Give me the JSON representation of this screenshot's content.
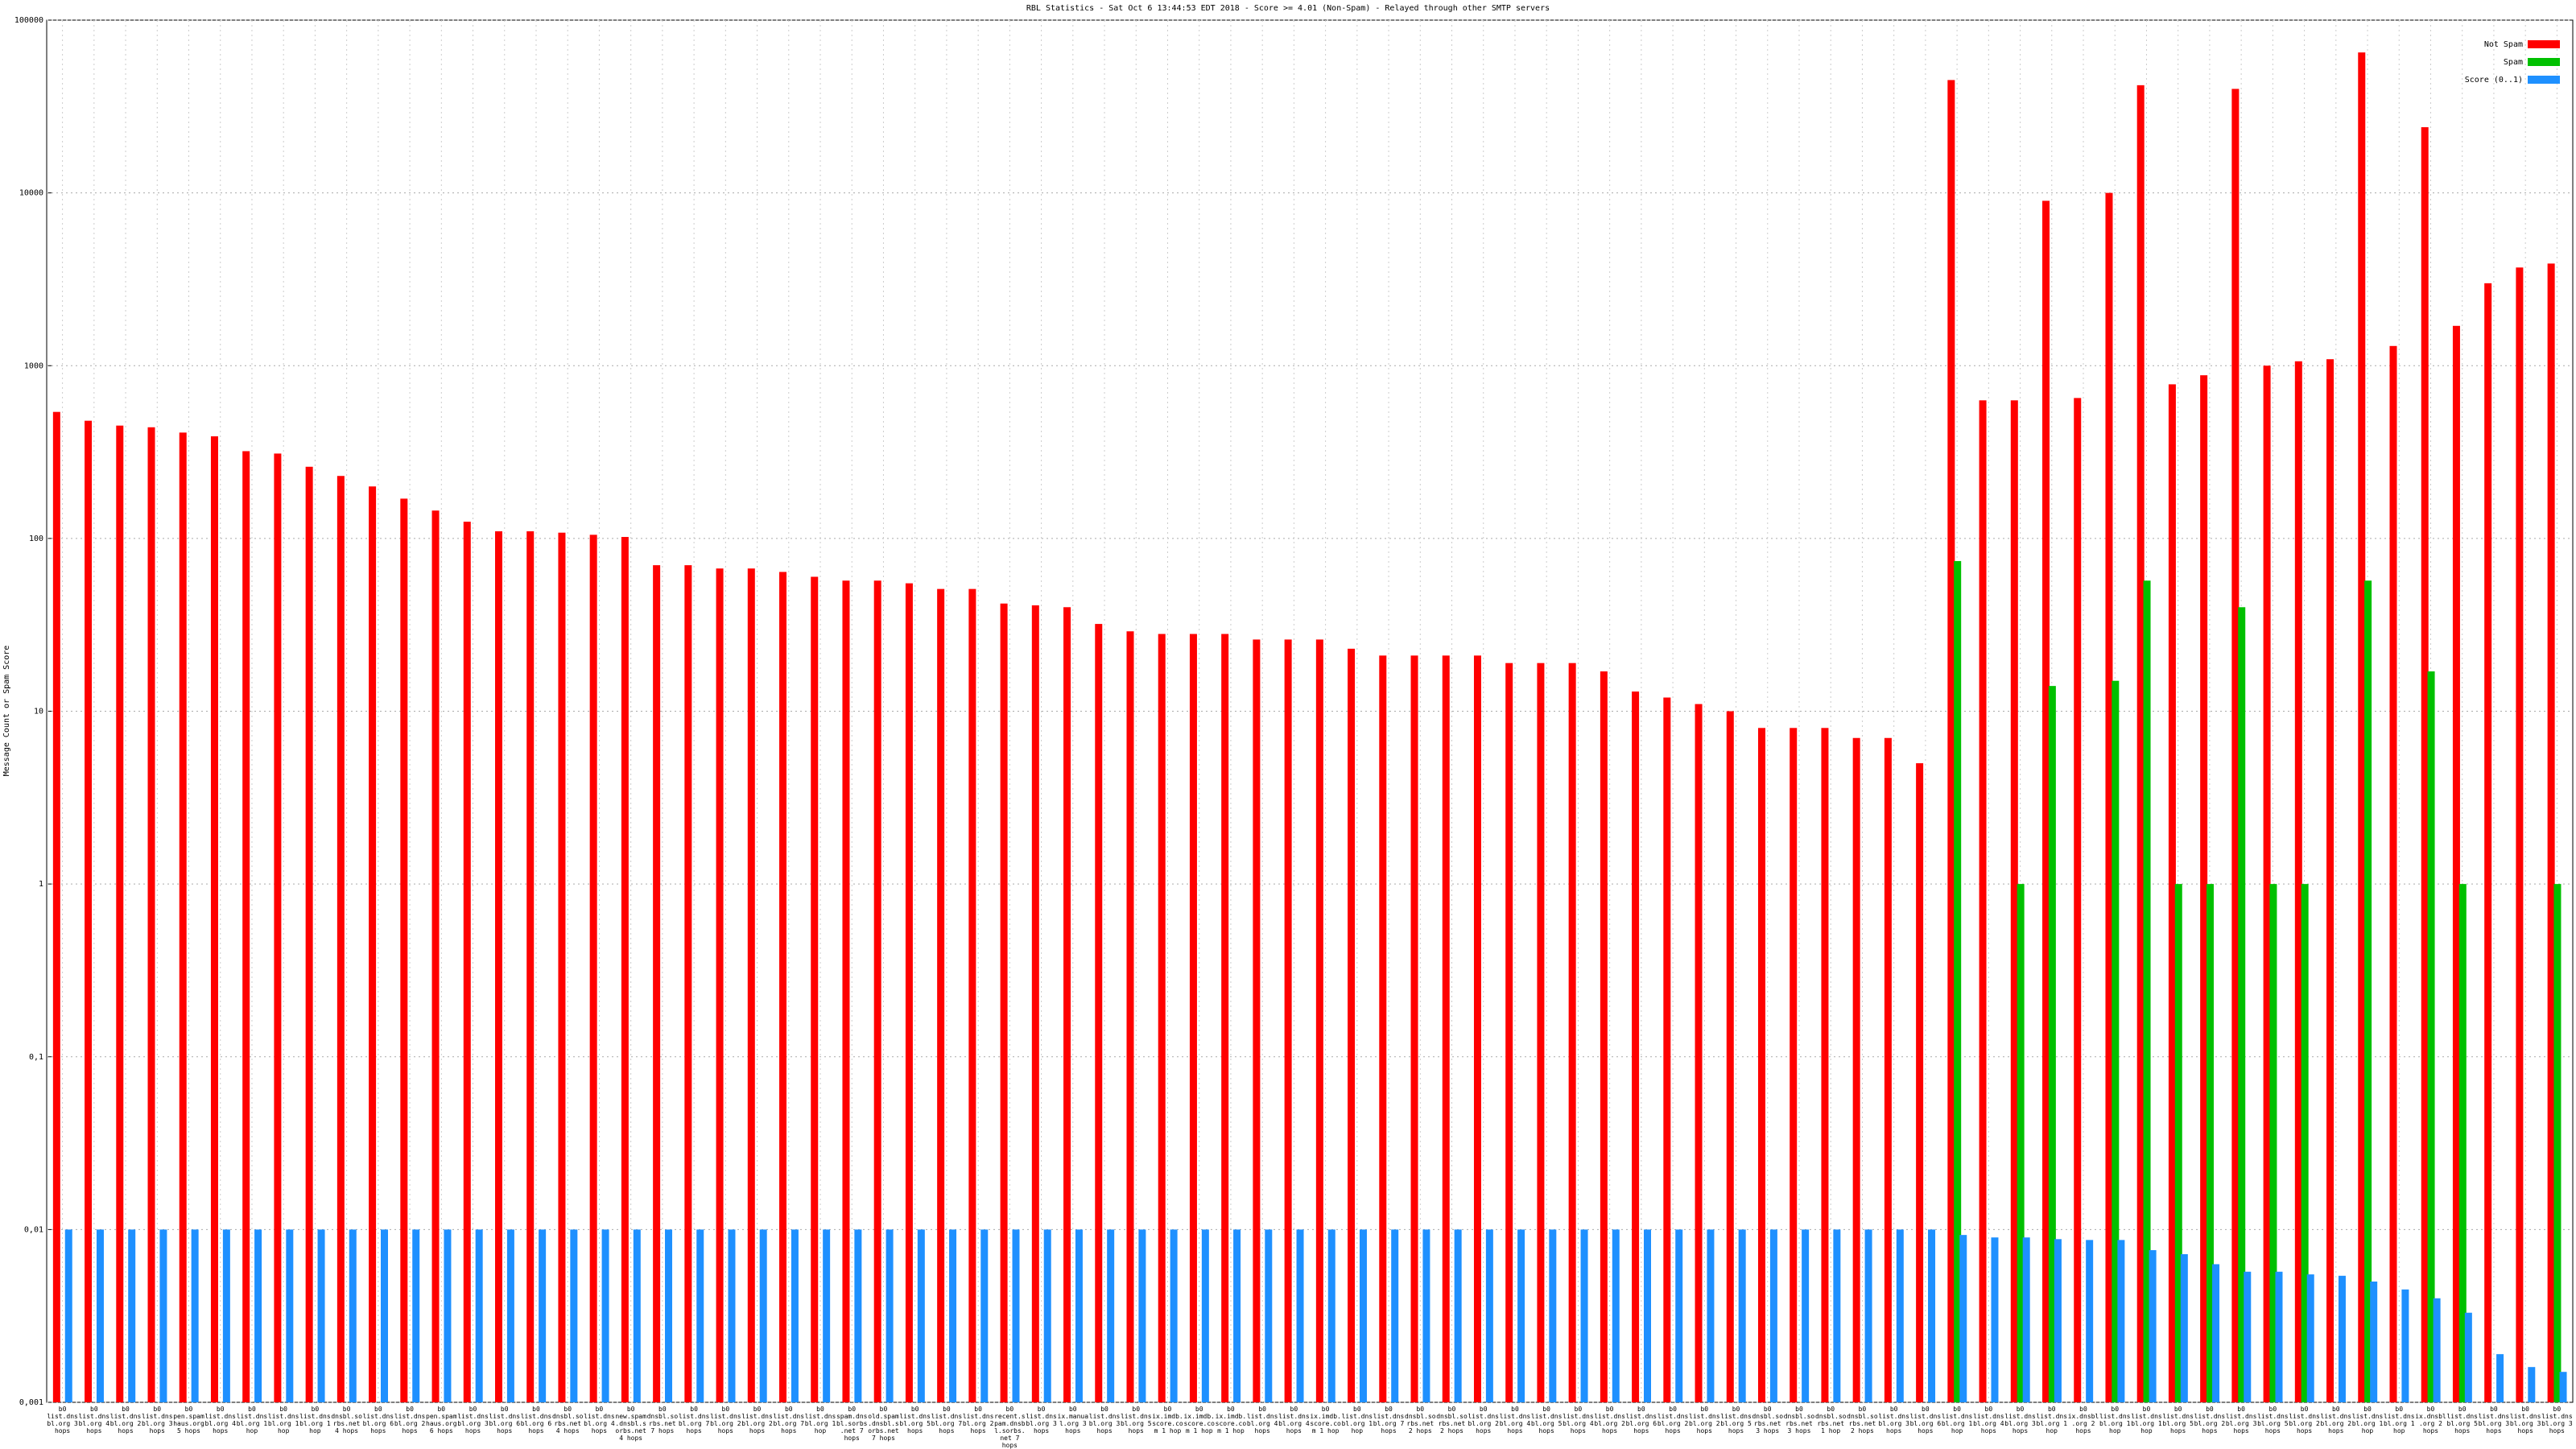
{
  "chart_data": {
    "type": "bar",
    "log_scale": true,
    "grid": true,
    "legend_position": "top-right",
    "title": "RBL Statistics - Sat Oct 6 13:44:53 EDT 2018 - Score >= 4.01 (Non-Spam) - Relayed through other SMTP servers",
    "y_label": "Message Count or Spam Score",
    "ylim": [
      0.001,
      100000
    ],
    "yticks": [
      {
        "value": 0.001,
        "label": "0,001"
      },
      {
        "value": 0.01,
        "label": "0,01"
      },
      {
        "value": 0.1,
        "label": "0,1"
      },
      1,
      10,
      100,
      1000,
      10000,
      100000
    ],
    "categories": [
      "b0 list.dnsbl.org 3 hops",
      "b0 list.dnsbl.org 4 hops",
      "b0 list.dnsbl.org 2 hops",
      "b0 list.dnsbl.org 3 hops",
      "b0 pen.spamhaus.org 5 hops",
      "b0 list.dnsbl.org 4 hops",
      "b0 list.dnsbl.org 1 hop",
      "b0 list.dnsbl.org 1 hop",
      "b0 list.dnsbl.org 1 hop",
      "b0 dnsbl.sorbs.net 4 hops",
      "b0 list.dnsbl.org 6 hops",
      "b0 list.dnsbl.org 2 hops",
      "b0 pen.spamhaus.org 6 hops",
      "b0 list.dnsbl.org 3 hops",
      "b0 list.dnsbl.org 6 hops",
      "b0 list.dnsbl.org 6 hops",
      "b0 dnsbl.sorbs.net 4 hops",
      "b0 list.dnsbl.org 4 hops",
      "b0 new.spam.dnsbl.sorbs.net 4 hops",
      "b0 dnsbl.sorbs.net 7 hops",
      "b0 list.dnsbl.org 7 hops",
      "b0 list.dnsbl.org 2 hops",
      "b0 list.dnsbl.org 2 hops",
      "b0 list.dnsbl.org 7 hops",
      "b0 list.dnsbl.org 1 hop",
      "b0 spam.dnsbl.sorbs.net 7 hops",
      "b0 old.spam.dnsbl.sorbs.net 7 hops",
      "b0 list.dnsbl.org 5 hops",
      "b0 list.dnsbl.org 7 hops",
      "b0 list.dnsbl.org 2 hops",
      "b0 recent.spam.dnsbl.sorbs.net 7 hops",
      "b0 list.dnsbl.org 3 hops",
      "b0 ix.manual.org 3 hops",
      "b0 list.dnsbl.org 3 hops",
      "b0 list.dnsbl.org 5 hops",
      "b0 ix.imdb.score.com 1 hop",
      "b0 ix.imdb.score.com 1 hop",
      "b0 ix.imdb.score.com 1 hop",
      "b0 list.dnsbl.org 4 hops",
      "b0 list.dnsbl.org 4 hops",
      "b0 ix.imdb.score.com 1 hop",
      "b0 list.dnsbl.org 1 hop",
      "b0 list.dnsbl.org 7 hops",
      "b0 dnsbl.sorbs.net 2 hops",
      "b0 dnsbl.sorbs.net 2 hops",
      "b0 list.dnsbl.org 2 hops",
      "b0 list.dnsbl.org 4 hops",
      "b0 list.dnsbl.org 5 hops",
      "b0 list.dnsbl.org 4 hops",
      "b0 list.dnsbl.org 2 hops",
      "b0 list.dnsbl.org 6 hops",
      "b0 list.dnsbl.org 2 hops",
      "b0 list.dnsbl.org 2 hops",
      "b0 list.dnsbl.org 5 hops",
      "b0 dnsbl.sorbs.net 3 hops",
      "b0 dnsbl.sorbs.net 3 hops",
      "b0 dnsbl.sorbs.net 1 hop",
      "b0 dnsbl.sorbs.net 2 hops",
      "b0 list.dnsbl.org 3 hops",
      "b0 list.dnsbl.org 6 hops",
      "b0 list.dnsbl.org 1 hop",
      "b0 list.dnsbl.org 4 hops",
      "b0 list.dnsbl.org 3 hops",
      "b0 list.dnsbl.org 1 hop",
      "b0 ix.dnsbl.org 2 hops",
      "b0 list.dnsbl.org 1 hop",
      "b0 list.dnsbl.org 1 hop",
      "b0 list.dnsbl.org 5 hops",
      "b0 list.dnsbl.org 2 hops",
      "b0 list.dnsbl.org 3 hops",
      "b0 list.dnsbl.org 5 hops",
      "b0 list.dnsbl.org 2 hops",
      "b0 list.dnsbl.org 2 hops",
      "b0 list.dnsbl.org 1 hop",
      "b0 list.dnsbl.org 1 hop",
      "b0 ix.dnsbl.org 2 hops",
      "b0 list.dnsbl.org 5 hops",
      "b0 list.dnsbl.org 3 hops",
      "b0 list.dnsbl.org 3 hops",
      "b0 list.dnsbl.org 3 hops"
    ],
    "series": [
      {
        "name": "Not Spam",
        "color": "#ff0000",
        "values": [
          540,
          480,
          450,
          440,
          410,
          390,
          320,
          310,
          260,
          230,
          200,
          170,
          145,
          125,
          110,
          110,
          108,
          105,
          102,
          70,
          70,
          67,
          67,
          64,
          60,
          57,
          57,
          55,
          51,
          51,
          42,
          41,
          40,
          32,
          29,
          28,
          28,
          28,
          26,
          26,
          26,
          23,
          21,
          21,
          21,
          21,
          19,
          19,
          19,
          17,
          13,
          12,
          11,
          10,
          8,
          8,
          8,
          7,
          7,
          5,
          45000,
          630,
          630,
          9000,
          650,
          10000,
          42000,
          780,
          880,
          40000,
          1000,
          1060,
          1090,
          65000,
          1300,
          24000,
          1700,
          3000,
          3700,
          3900
        ]
      },
      {
        "name": "Spam",
        "color": "#00c000",
        "values": [
          null,
          null,
          null,
          null,
          null,
          null,
          null,
          null,
          null,
          null,
          null,
          null,
          null,
          null,
          null,
          null,
          null,
          null,
          null,
          null,
          null,
          null,
          null,
          null,
          null,
          null,
          null,
          null,
          null,
          null,
          null,
          null,
          null,
          null,
          null,
          null,
          null,
          null,
          null,
          null,
          null,
          null,
          null,
          null,
          null,
          null,
          null,
          null,
          null,
          null,
          null,
          null,
          null,
          null,
          null,
          null,
          null,
          null,
          null,
          null,
          74,
          null,
          1,
          14,
          null,
          15,
          57,
          1,
          1,
          40,
          1,
          1,
          null,
          57,
          null,
          17,
          1,
          null,
          null,
          1
        ]
      },
      {
        "name": "Score (0..1)",
        "color": "#1e90ff",
        "values": [
          0.01,
          0.01,
          0.01,
          0.01,
          0.01,
          0.01,
          0.01,
          0.01,
          0.01,
          0.01,
          0.01,
          0.01,
          0.01,
          0.01,
          0.01,
          0.01,
          0.01,
          0.01,
          0.01,
          0.01,
          0.01,
          0.01,
          0.01,
          0.01,
          0.01,
          0.01,
          0.01,
          0.01,
          0.01,
          0.01,
          0.01,
          0.01,
          0.01,
          0.01,
          0.01,
          0.01,
          0.01,
          0.01,
          0.01,
          0.01,
          0.01,
          0.01,
          0.01,
          0.01,
          0.01,
          0.01,
          0.01,
          0.01,
          0.01,
          0.01,
          0.01,
          0.01,
          0.01,
          0.01,
          0.01,
          0.01,
          0.01,
          0.01,
          0.01,
          0.01,
          0.0093,
          0.009,
          0.009,
          0.0088,
          0.0087,
          0.0087,
          0.0076,
          0.0072,
          0.0063,
          0.0057,
          0.0057,
          0.0055,
          0.0054,
          0.005,
          0.0045,
          0.004,
          0.0033,
          0.0019,
          0.0016,
          0.0015
        ]
      }
    ]
  }
}
